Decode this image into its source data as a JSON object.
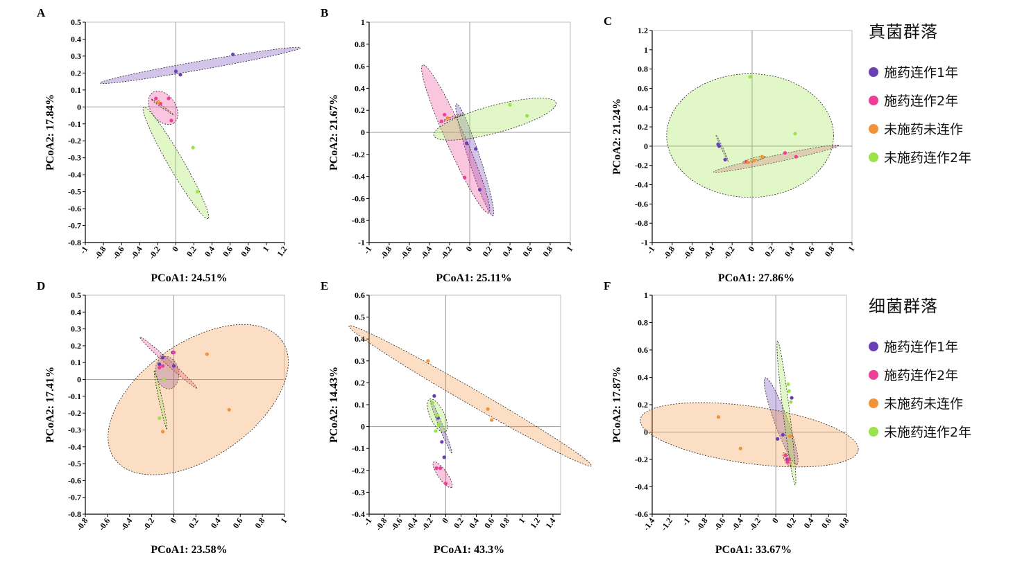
{
  "colors": {
    "group1": "#6a3fb5",
    "group2": "#ee3e96",
    "group3": "#f39237",
    "group4": "#9be34a"
  },
  "legends": [
    {
      "title": "真菌群落",
      "items": [
        {
          "label": "施药连作1年",
          "color": "#6a3fb5"
        },
        {
          "label": "施药连作2年",
          "color": "#ee3e96"
        },
        {
          "label": "未施药未连作",
          "color": "#f39237"
        },
        {
          "label": "未施药连作2年",
          "color": "#9be34a"
        }
      ]
    },
    {
      "title": "细菌群落",
      "items": [
        {
          "label": "施药连作1年",
          "color": "#6a3fb5"
        },
        {
          "label": "施药连作2年",
          "color": "#ee3e96"
        },
        {
          "label": "未施药未连作",
          "color": "#f39237"
        },
        {
          "label": "未施药连作2年",
          "color": "#9be34a"
        }
      ]
    }
  ],
  "chart_data": [
    {
      "type": "scatter",
      "panel_label": "A",
      "xlabel": "PCoA1: 24.51%",
      "ylabel": "PCoA2: 17.84%",
      "xlim": [
        -1,
        1.2
      ],
      "ylim": [
        -0.8,
        0.5
      ],
      "xticks": [
        -1,
        -0.8,
        -0.6,
        -0.4,
        -0.2,
        0,
        0.2,
        0.4,
        0.6,
        0.8,
        1,
        1.2
      ],
      "yticks": [
        -0.8,
        -0.7,
        -0.6,
        -0.5,
        -0.4,
        -0.3,
        -0.2,
        -0.1,
        0,
        0.1,
        0.2,
        0.3,
        0.4,
        0.5
      ],
      "series": [
        {
          "color": "#6a3fb5",
          "points": [
            [
              0,
              0.21
            ],
            [
              0.05,
              0.19
            ],
            [
              0.63,
              0.31
            ]
          ],
          "ellipse": {
            "cx": 0.27,
            "cy": 0.245,
            "rx": 0.82,
            "ry": 0.035,
            "angle": 10
          }
        },
        {
          "color": "#ee3e96",
          "points": [
            [
              -0.22,
              0.05
            ],
            [
              -0.17,
              0.02
            ],
            [
              -0.08,
              0.05
            ],
            [
              -0.05,
              -0.08
            ]
          ],
          "ellipse": {
            "cx": -0.14,
            "cy": -0.005,
            "rx": 0.15,
            "ry": 0.1,
            "angle": -55
          }
        },
        {
          "color": "#f39237",
          "points": [
            [
              -0.19,
              0.03
            ]
          ],
          "ellipse": {
            "cx": -0.15,
            "cy": 0.0,
            "rx": 0.11,
            "ry": 0.005,
            "angle": -35
          }
        },
        {
          "color": "#9be34a",
          "points": [
            [
              0.19,
              -0.24
            ],
            [
              0.24,
              -0.5
            ]
          ],
          "ellipse": {
            "cx": 0.0,
            "cy": -0.33,
            "rx": 0.52,
            "ry": 0.06,
            "angle": -60
          }
        }
      ]
    },
    {
      "type": "scatter",
      "panel_label": "B",
      "xlabel": "PCoA1: 25.11%",
      "ylabel": "PCoA2: 21.67%",
      "xlim": [
        -1,
        1
      ],
      "ylim": [
        -1,
        1
      ],
      "xticks": [
        -1,
        -0.8,
        -0.6,
        -0.4,
        -0.2,
        0,
        0.2,
        0.4,
        0.6,
        0.8,
        1
      ],
      "yticks": [
        -1,
        -0.8,
        -0.6,
        -0.4,
        -0.2,
        0,
        0.2,
        0.4,
        0.6,
        0.8,
        1
      ],
      "series": [
        {
          "color": "#6a3fb5",
          "points": [
            [
              -0.03,
              -0.1
            ],
            [
              0.06,
              -0.15
            ],
            [
              0.1,
              -0.52
            ]
          ],
          "ellipse": {
            "cx": 0.05,
            "cy": -0.25,
            "rx": 0.56,
            "ry": 0.055,
            "angle": -72
          }
        },
        {
          "color": "#ee3e96",
          "points": [
            [
              -0.25,
              0.16
            ],
            [
              -0.28,
              0.1
            ],
            [
              -0.05,
              -0.41
            ]
          ],
          "ellipse": {
            "cx": -0.14,
            "cy": -0.06,
            "rx": 0.77,
            "ry": 0.09,
            "angle": -66
          }
        },
        {
          "color": "#f39237",
          "points": [
            [
              -0.22,
              0.13
            ]
          ],
          "ellipse": {
            "cx": -0.18,
            "cy": 0.13,
            "rx": 0.12,
            "ry": 0.005,
            "angle": 20
          }
        },
        {
          "color": "#9be34a",
          "points": [
            [
              0.4,
              0.25
            ],
            [
              0.57,
              0.15
            ]
          ],
          "ellipse": {
            "cx": 0.25,
            "cy": 0.12,
            "rx": 0.6,
            "ry": 0.13,
            "angle": 15
          }
        }
      ]
    },
    {
      "type": "scatter",
      "panel_label": "C",
      "xlabel": "PCoA1: 27.86%",
      "ylabel": "PCoA2: 21.24%",
      "xlim": [
        -1,
        1
      ],
      "ylim": [
        -1,
        1.2
      ],
      "xticks": [
        -1,
        -0.8,
        -0.6,
        -0.4,
        -0.2,
        0,
        0.2,
        0.4,
        0.6,
        0.8,
        1
      ],
      "yticks": [
        -1,
        -0.8,
        -0.6,
        -0.4,
        -0.2,
        0,
        0.2,
        0.4,
        0.6,
        0.8,
        1,
        1.2
      ],
      "series": [
        {
          "color": "#6a3fb5",
          "points": [
            [
              -0.34,
              0.02
            ],
            [
              -0.33,
              0.0
            ],
            [
              -0.27,
              -0.14
            ]
          ],
          "ellipse": {
            "cx": -0.3,
            "cy": -0.02,
            "rx": 0.15,
            "ry": 0.006,
            "angle": -65
          }
        },
        {
          "color": "#ee3e96",
          "points": [
            [
              0.33,
              -0.07
            ],
            [
              0.44,
              -0.11
            ],
            [
              -0.06,
              -0.16
            ]
          ],
          "ellipse": {
            "cx": 0.24,
            "cy": -0.13,
            "rx": 0.65,
            "ry": 0.035,
            "angle": 12
          }
        },
        {
          "color": "#f39237",
          "points": [
            [
              -0.04,
              -0.17
            ],
            [
              0.02,
              -0.15
            ],
            [
              0.1,
              -0.11
            ]
          ],
          "ellipse": {
            "cx": 0.02,
            "cy": -0.14,
            "rx": 0.12,
            "ry": 0.02,
            "angle": 15
          }
        },
        {
          "color": "#9be34a",
          "points": [
            [
              -0.02,
              0.72
            ],
            [
              0.43,
              0.13
            ]
          ],
          "ellipse": {
            "cx": -0.02,
            "cy": 0.11,
            "rx": 0.85,
            "ry": 0.63,
            "angle": 0
          }
        }
      ]
    },
    {
      "type": "scatter",
      "panel_label": "D",
      "xlabel": "PCoA1: 23.58%",
      "ylabel": "PCoA2: 17.41%",
      "xlim": [
        -0.8,
        1
      ],
      "ylim": [
        -0.8,
        0.5
      ],
      "xticks": [
        -0.8,
        -0.6,
        -0.4,
        -0.2,
        0,
        0.2,
        0.4,
        0.6,
        0.8,
        1
      ],
      "yticks": [
        -0.8,
        -0.7,
        -0.6,
        -0.5,
        -0.4,
        -0.3,
        -0.2,
        -0.1,
        0,
        0.1,
        0.2,
        0.3,
        0.4,
        0.5
      ],
      "series": [
        {
          "color": "#6a3fb5",
          "points": [
            [
              -0.1,
              0.13
            ],
            [
              -0.01,
              0.16
            ],
            [
              0.0,
              0.08
            ],
            [
              -0.13,
              0.09
            ]
          ],
          "ellipse": {
            "cx": -0.06,
            "cy": 0.04,
            "rx": 0.085,
            "ry": 0.12,
            "angle": 10
          }
        },
        {
          "color": "#ee3e96",
          "points": [
            [
              -0.13,
              0.07
            ],
            [
              0.0,
              0.16
            ],
            [
              -0.1,
              0.08
            ]
          ],
          "ellipse": {
            "cx": -0.05,
            "cy": 0.1,
            "rx": 0.28,
            "ry": 0.018,
            "angle": -42
          }
        },
        {
          "color": "#f39237",
          "points": [
            [
              0.3,
              0.15
            ],
            [
              0.5,
              -0.18
            ],
            [
              -0.1,
              -0.31
            ]
          ],
          "ellipse": {
            "cx": 0.22,
            "cy": -0.12,
            "rx": 0.75,
            "ry": 0.42,
            "angle": 35
          }
        },
        {
          "color": "#9be34a",
          "points": [
            [
              -0.09,
              0.0
            ],
            [
              -0.13,
              -0.23
            ]
          ],
          "ellipse": {
            "cx": -0.12,
            "cy": -0.12,
            "rx": 0.22,
            "ry": 0.012,
            "angle": -78
          }
        }
      ]
    },
    {
      "type": "scatter",
      "panel_label": "E",
      "xlabel": "PCoA1: 43.3%",
      "ylabel": "PCoA2: 14.43%",
      "xlim": [
        -1,
        1.5
      ],
      "ylim": [
        -0.4,
        0.6
      ],
      "xticks": [
        -1,
        -0.8,
        -0.6,
        -0.4,
        -0.2,
        0,
        0.2,
        0.4,
        0.6,
        0.8,
        1,
        1.2,
        1.4
      ],
      "yticks": [
        -0.4,
        -0.3,
        -0.2,
        -0.1,
        0,
        0.1,
        0.2,
        0.3,
        0.4,
        0.5,
        0.6
      ],
      "series": [
        {
          "color": "#6a3fb5",
          "points": [
            [
              -0.15,
              0.14
            ],
            [
              -0.1,
              0.04
            ],
            [
              -0.05,
              -0.07
            ],
            [
              -0.02,
              -0.14
            ]
          ],
          "ellipse": {
            "cx": -0.06,
            "cy": 0.0,
            "rx": 0.22,
            "ry": 0.015,
            "angle": -68
          }
        },
        {
          "color": "#ee3e96",
          "points": [
            [
              -0.12,
              -0.19
            ],
            [
              -0.07,
              -0.19
            ],
            [
              0.0,
              -0.26
            ]
          ],
          "ellipse": {
            "cx": -0.04,
            "cy": -0.22,
            "rx": 0.12,
            "ry": 0.035,
            "angle": -55
          }
        },
        {
          "color": "#f39237",
          "points": [
            [
              -0.23,
              0.3
            ],
            [
              0.55,
              0.08
            ],
            [
              0.6,
              0.03
            ]
          ],
          "ellipse": {
            "cx": 0.32,
            "cy": 0.14,
            "rx": 1.08,
            "ry": 0.06,
            "angle": -30
          }
        },
        {
          "color": "#9be34a",
          "points": [
            [
              -0.17,
              0.11
            ],
            [
              -0.11,
              0.05
            ],
            [
              -0.09,
              0.01
            ],
            [
              -0.13,
              -0.02
            ]
          ],
          "ellipse": {
            "cx": -0.11,
            "cy": 0.05,
            "rx": 0.14,
            "ry": 0.055,
            "angle": -65
          }
        }
      ]
    },
    {
      "type": "scatter",
      "panel_label": "F",
      "xlabel": "PCoA1: 33.67%",
      "ylabel": "PCoA2: 17.87%",
      "xlim": [
        -1.4,
        0.8
      ],
      "ylim": [
        -0.6,
        1
      ],
      "xticks": [
        -1.4,
        -1.2,
        -1,
        -0.8,
        -0.6,
        -0.4,
        -0.2,
        0,
        0.2,
        0.4,
        0.6,
        0.8
      ],
      "yticks": [
        -0.6,
        -0.4,
        -0.2,
        0,
        0.2,
        0.4,
        0.6,
        0.8,
        1
      ],
      "series": [
        {
          "color": "#6a3fb5",
          "points": [
            [
              0.18,
              0.25
            ],
            [
              0.08,
              -0.02
            ],
            [
              0.02,
              -0.05
            ],
            [
              0.13,
              -0.2
            ]
          ],
          "ellipse": {
            "cx": 0.06,
            "cy": 0.08,
            "rx": 0.42,
            "ry": 0.06,
            "angle": -70
          }
        },
        {
          "color": "#ee3e96",
          "points": [
            [
              0.11,
              -0.17
            ],
            [
              0.15,
              -0.2
            ],
            [
              0.13,
              -0.22
            ]
          ],
          "ellipse": {
            "cx": 0.13,
            "cy": -0.2,
            "rx": 0.07,
            "ry": 0.025,
            "angle": -60
          }
        },
        {
          "color": "#f39237",
          "points": [
            [
              -0.65,
              0.11
            ],
            [
              -0.4,
              -0.12
            ],
            [
              0.16,
              -0.03
            ]
          ],
          "ellipse": {
            "cx": -0.3,
            "cy": -0.02,
            "rx": 1.0,
            "ry": 0.26,
            "angle": -8
          }
        },
        {
          "color": "#9be34a",
          "points": [
            [
              0.14,
              0.35
            ],
            [
              0.15,
              0.3
            ],
            [
              0.17,
              0.22
            ]
          ],
          "ellipse": {
            "cx": 0.12,
            "cy": 0.14,
            "rx": 0.66,
            "ry": 0.03,
            "angle": -83
          }
        }
      ]
    }
  ]
}
